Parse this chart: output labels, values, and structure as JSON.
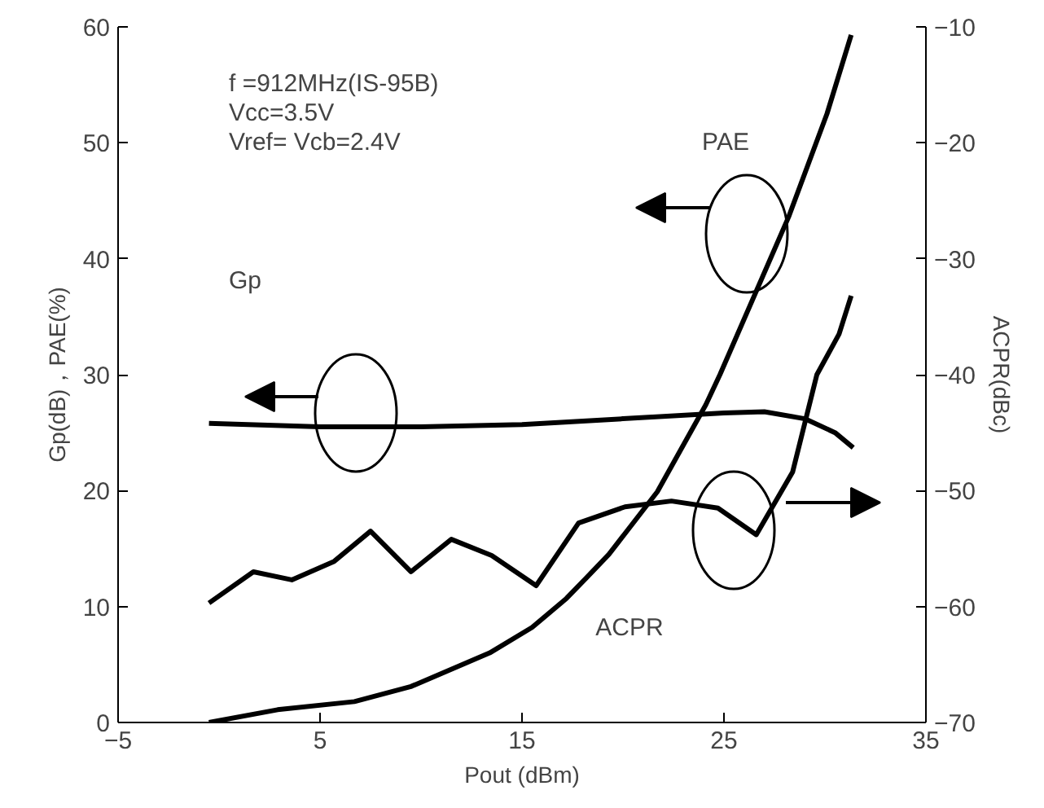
{
  "chart_data": {
    "type": "line",
    "xlabel": "Pout (dBm)",
    "ylabel": "Gp(dB)，PAE(%)",
    "y2label": "ACPR(dBc)",
    "xlim": [
      -5,
      35
    ],
    "xticks": [
      -5,
      5,
      15,
      25,
      35
    ],
    "ylim": [
      0,
      60
    ],
    "yticks": [
      0,
      10,
      20,
      30,
      40,
      50,
      60
    ],
    "y2lim": [
      -70,
      -10
    ],
    "y2ticks": [
      -70,
      -60,
      -50,
      -40,
      -30,
      -20,
      -10
    ],
    "grid": false,
    "marker": "none",
    "line_style": "solid",
    "series": [
      {
        "color": "#000000",
        "x": [
          -0.5,
          5,
          10,
          15,
          20,
          25,
          27,
          29,
          30.5,
          31.4
        ],
        "values": [
          25.8,
          25.5,
          25.5,
          25.7,
          26.2,
          26.7,
          26.8,
          26.2,
          25,
          23.7
        ]
      },
      {
        "color": "#000000",
        "x": [
          -0.5,
          2.9,
          6.7,
          9.5,
          13.4,
          15.5,
          17.2,
          18.2,
          19.3,
          21.7,
          24.1,
          24.8,
          28.2,
          30.1,
          31.3
        ],
        "values": [
          0,
          1.1,
          1.8,
          3.1,
          6,
          8.2,
          10.7,
          12.5,
          14.5,
          19.9,
          27.4,
          30,
          43.6,
          52.5,
          59.3
        ]
      },
      {
        "color": "#000000",
        "axis": "y2",
        "x": [
          -0.5,
          1.7,
          3.6,
          5.7,
          7.5,
          9.5,
          11.5,
          13.5,
          15.7,
          17.8,
          20.1,
          22.4,
          24.7,
          26.6,
          28.4,
          29.6,
          30.7,
          31.3
        ],
        "values": [
          -59.7,
          -57,
          -57.7,
          -56.1,
          -53.5,
          -57,
          -54.2,
          -55.6,
          -58.2,
          -52.8,
          -51.4,
          -50.9,
          -51.5,
          -53.8,
          -48.4,
          -40,
          -36.5,
          -33.2
        ]
      }
    ],
    "annotations": [
      "f =912MHz(IS-95B)",
      "Vcc=3.5V",
      "Vref= Vcb=2.4V",
      "Gp",
      "PAE",
      "ACPR"
    ]
  }
}
